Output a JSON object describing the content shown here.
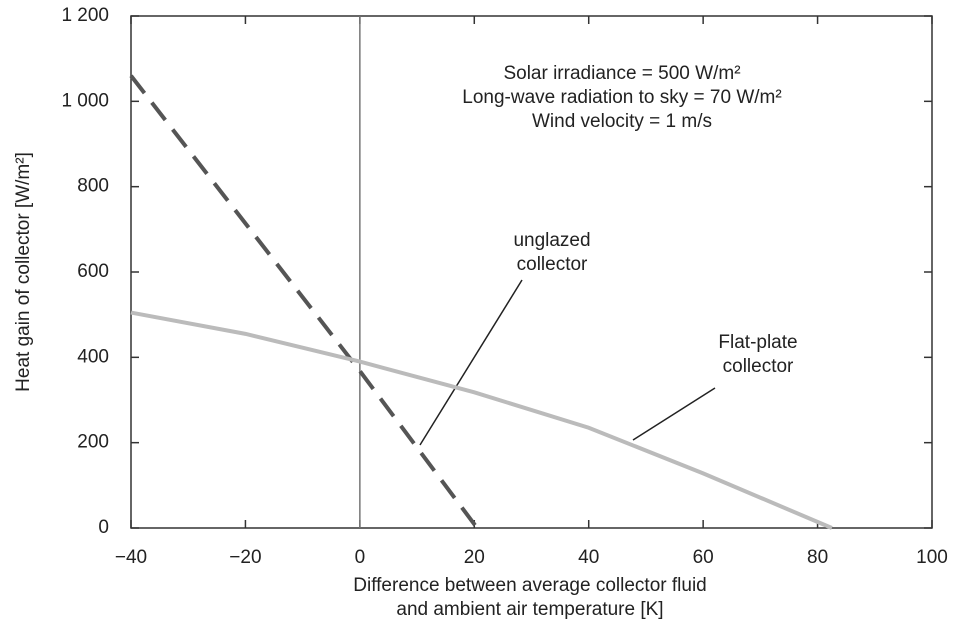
{
  "chart_data": {
    "type": "line",
    "annotations": [
      "Solar irradiance = 500 W/m²",
      "Long-wave radiation to sky = 70 W/m²",
      "Wind velocity = 1 m/s"
    ],
    "x_label": [
      "Difference between average collector fluid",
      "and ambient air temperature [K]"
    ],
    "y_label": "Heat gain of collector  [W/m²]",
    "series": [
      {
        "name": [
          "unglazed",
          "collector"
        ],
        "color": "#555555",
        "dash": true,
        "x": [
          -40,
          0,
          20.5
        ],
        "values": [
          1060,
          368,
          0
        ]
      },
      {
        "name": [
          "Flat-plate",
          "collector"
        ],
        "color": "#bbbbbb",
        "dash": false,
        "x": [
          -40,
          -20,
          0,
          20,
          40,
          60,
          82.5
        ],
        "values": [
          505,
          455,
          390,
          318,
          235,
          128,
          0
        ]
      }
    ],
    "vline": 0,
    "xlim": [
      -40,
      100
    ],
    "xticks": [
      {
        "value": -40,
        "label": "−40"
      },
      {
        "value": -20,
        "label": "−20"
      },
      0,
      20,
      40,
      60,
      80,
      100
    ],
    "ylim": [
      0,
      1200
    ],
    "yticks": [
      0,
      200,
      400,
      600,
      800,
      {
        "value": 1000,
        "label": "1 000"
      },
      {
        "value": 1200,
        "label": "1 200"
      }
    ]
  }
}
